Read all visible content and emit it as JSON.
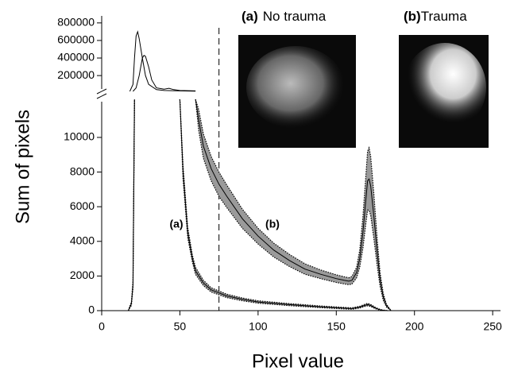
{
  "chart_data": [
    {
      "type": "line",
      "xlim": [
        0,
        255
      ],
      "ylim": [
        20000,
        880000
      ],
      "yticks": [
        200000,
        400000,
        600000,
        800000
      ],
      "series": [
        {
          "color": "#000000",
          "x": [
            18,
            20,
            21,
            22,
            23,
            24,
            26,
            28,
            30,
            35,
            40,
            50,
            60
          ],
          "values": [
            20000,
            100000,
            400000,
            650000,
            700000,
            620000,
            400000,
            200000,
            100000,
            40000,
            30000,
            25000,
            22000
          ]
        },
        {
          "color": "#000000",
          "x": [
            20,
            22,
            24,
            26,
            27,
            28,
            30,
            32,
            35,
            40,
            43,
            46,
            50,
            60
          ],
          "values": [
            20000,
            60000,
            200000,
            400000,
            430000,
            420000,
            300000,
            150000,
            60000,
            45000,
            55000,
            40000,
            30000,
            25000
          ]
        }
      ]
    },
    {
      "type": "line",
      "x_label": "Pixel value",
      "y_label": "Sum of pixels",
      "xlim": [
        0,
        255
      ],
      "xticks": [
        0,
        50,
        100,
        150,
        200,
        250
      ],
      "ylim": [
        0,
        12200
      ],
      "yticks": [
        0,
        2000,
        4000,
        6000,
        8000,
        10000
      ],
      "vline": 75,
      "band_color": "#9a9a9a",
      "series": [
        {
          "name": "(a)",
          "color": "#000000",
          "x": [
            17,
            18,
            19,
            20,
            21,
            35,
            50,
            52,
            55,
            58,
            60,
            65,
            70,
            80,
            90,
            100,
            120,
            140,
            160,
            165,
            168,
            170,
            172,
            175,
            178,
            180,
            183
          ],
          "values": [
            0,
            200,
            400,
            1500,
            12200,
            null,
            12200,
            8000,
            4500,
            3000,
            2300,
            1600,
            1200,
            850,
            650,
            500,
            350,
            220,
            120,
            200,
            300,
            350,
            300,
            150,
            50,
            20,
            0
          ],
          "upper": [
            0,
            250,
            500,
            1700,
            12200,
            null,
            12200,
            8400,
            4800,
            3200,
            2500,
            1750,
            1320,
            950,
            730,
            570,
            410,
            270,
            160,
            250,
            360,
            420,
            360,
            190,
            70,
            30,
            0
          ],
          "lower": [
            0,
            150,
            300,
            1300,
            12200,
            null,
            12200,
            7600,
            4200,
            2800,
            2100,
            1450,
            1080,
            750,
            570,
            430,
            290,
            170,
            80,
            150,
            240,
            280,
            240,
            110,
            30,
            10,
            0
          ]
        },
        {
          "name": "(b)",
          "color": "#000000",
          "x": [
            60,
            62,
            65,
            70,
            75,
            80,
            90,
            100,
            110,
            120,
            130,
            140,
            150,
            155,
            158,
            160,
            163,
            165,
            167,
            169,
            170,
            171,
            172,
            174,
            176,
            178,
            180,
            182,
            185
          ],
          "values": [
            12200,
            11000,
            9500,
            8200,
            7300,
            6600,
            5300,
            4300,
            3500,
            2900,
            2400,
            2100,
            1850,
            1750,
            1700,
            1750,
            2200,
            3000,
            4500,
            6500,
            7500,
            7600,
            7200,
            5500,
            3500,
            1800,
            800,
            300,
            0
          ],
          "upper": [
            12200,
            11600,
            10200,
            8900,
            8000,
            7250,
            5850,
            4750,
            3900,
            3250,
            2700,
            2350,
            2070,
            1960,
            1900,
            1970,
            2500,
            3500,
            5400,
            7900,
            9200,
            9400,
            8900,
            6800,
            4300,
            2200,
            1000,
            380,
            0
          ],
          "lower": [
            12200,
            10400,
            8800,
            7500,
            6600,
            5950,
            4750,
            3850,
            3100,
            2550,
            2100,
            1850,
            1630,
            1540,
            1500,
            1530,
            1900,
            2500,
            3600,
            5100,
            5800,
            5800,
            5500,
            4200,
            2700,
            1400,
            600,
            220,
            0
          ]
        }
      ]
    }
  ],
  "insets": [
    {
      "tag": "(a)",
      "caption": "No trauma"
    },
    {
      "tag": "(b)",
      "caption": "Trauma"
    }
  ]
}
